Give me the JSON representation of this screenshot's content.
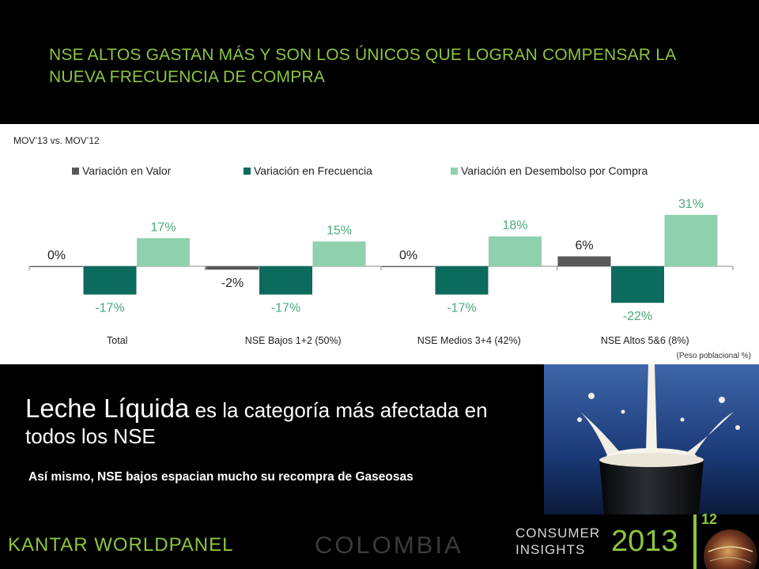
{
  "header": {
    "title": "NSE ALTOS GASTAN MÁS Y SON LOS ÚNICOS QUE LOGRAN COMPENSAR LA NUEVA FRECUENCIA DE COMPRA"
  },
  "chart_data": {
    "type": "bar",
    "subtitle": "MOV’13 vs. MOV’12",
    "categories": [
      "Total",
      "NSE Bajos 1+2 (50%)",
      "NSE Medios 3+4 (42%)",
      "NSE Altos 5&6 (8%)"
    ],
    "series": [
      {
        "name": "Variación en Valor",
        "values": [
          0,
          -2,
          0,
          6
        ],
        "labels": [
          "0%",
          "-2%",
          "0%",
          "6%"
        ],
        "color": "#595959"
      },
      {
        "name": "Variación en Frecuencia",
        "values": [
          -17,
          -17,
          -17,
          -22
        ],
        "labels": [
          "-17%",
          "-17%",
          "-17%",
          "-22%"
        ],
        "color": "#0b6b5d"
      },
      {
        "name": "Variación en Desembolso por Compra",
        "values": [
          17,
          15,
          18,
          31
        ],
        "labels": [
          "17%",
          "15%",
          "18%",
          "31%"
        ],
        "color": "#8fd1ae"
      }
    ],
    "legend_position": "top",
    "grid": false,
    "footnote": "(Peso poblacional %)"
  },
  "body": {
    "headline_big": "Leche Líquida",
    "headline_rest": " es la categoría más afectada en todos los NSE",
    "sub_headline": "Así mismo, NSE bajos espacian mucho su recompra de Gaseosas"
  },
  "footer": {
    "logo": "KANTAR WORLDPANEL",
    "country": "COLOMBIA",
    "consumer_insights": "CONSUMER INSIGHTS",
    "year": "2013",
    "page_number": "12"
  },
  "colors": {
    "accent_green": "#8cc63e",
    "label_green": "#4aa979"
  }
}
